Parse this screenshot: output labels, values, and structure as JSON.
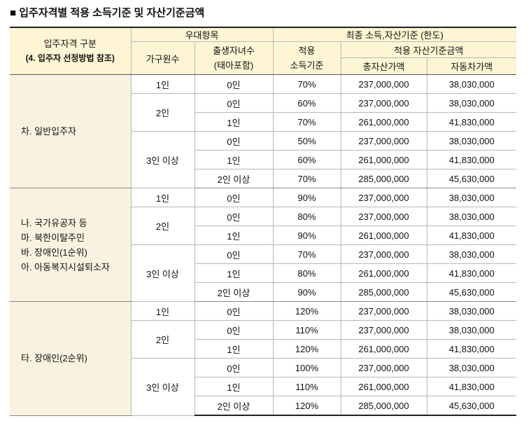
{
  "title": "■ 입주자격별 적용 소득기준 및 자산기준금액",
  "header": {
    "qualification": [
      "입주자격 구분",
      "(4. 입주자 선정방법 참조)"
    ],
    "preference": "우대항목",
    "final": "최종 소득,자산기준 (한도)",
    "household_size": "가구원수",
    "children": [
      "출생자녀수",
      "(태아포함)"
    ],
    "income": [
      "적용",
      "소득기준"
    ],
    "asset": "적용 자산기준금액",
    "total_assets": "총자산가액",
    "car": "자동차가액"
  },
  "groups": [
    {
      "label": [
        "차. 일반입주자"
      ],
      "households": [
        {
          "size": "1인",
          "rows": [
            [
              "0인",
              "70%",
              "237,000,000",
              "38,030,000"
            ]
          ]
        },
        {
          "size": "2인",
          "rows": [
            [
              "0인",
              "60%",
              "237,000,000",
              "38,030,000"
            ],
            [
              "1인",
              "70%",
              "261,000,000",
              "41,830,000"
            ]
          ]
        },
        {
          "size": "3인 이상",
          "rows": [
            [
              "0인",
              "50%",
              "237,000,000",
              "38,030,000"
            ],
            [
              "1인",
              "60%",
              "261,000,000",
              "41,830,000"
            ],
            [
              "2인 이상",
              "70%",
              "285,000,000",
              "45,630,000"
            ]
          ]
        }
      ]
    },
    {
      "label": [
        "나. 국가유공자 등",
        "마. 북한이탈주민",
        "바. 장애인(1순위)",
        "아. 아동복지시설퇴소자"
      ],
      "households": [
        {
          "size": "1인",
          "rows": [
            [
              "0인",
              "90%",
              "237,000,000",
              "38,030,000"
            ]
          ]
        },
        {
          "size": "2인",
          "rows": [
            [
              "0인",
              "80%",
              "237,000,000",
              "38,030,000"
            ],
            [
              "1인",
              "90%",
              "261,000,000",
              "41,830,000"
            ]
          ]
        },
        {
          "size": "3인 이상",
          "rows": [
            [
              "0인",
              "70%",
              "237,000,000",
              "38,030,000"
            ],
            [
              "1인",
              "80%",
              "261,000,000",
              "41,830,000"
            ],
            [
              "2인 이상",
              "90%",
              "285,000,000",
              "45,630,000"
            ]
          ]
        }
      ]
    },
    {
      "label": [
        "타. 장애인(2순위)"
      ],
      "households": [
        {
          "size": "1인",
          "rows": [
            [
              "0인",
              "120%",
              "237,000,000",
              "38,030,000"
            ]
          ]
        },
        {
          "size": "2인",
          "rows": [
            [
              "0인",
              "110%",
              "237,000,000",
              "38,030,000"
            ],
            [
              "1인",
              "120%",
              "261,000,000",
              "41,830,000"
            ]
          ]
        },
        {
          "size": "3인 이상",
          "rows": [
            [
              "0인",
              "100%",
              "237,000,000",
              "38,030,000"
            ],
            [
              "1인",
              "110%",
              "261,000,000",
              "41,830,000"
            ],
            [
              "2인 이상",
              "120%",
              "285,000,000",
              "45,630,000"
            ]
          ]
        }
      ]
    }
  ]
}
